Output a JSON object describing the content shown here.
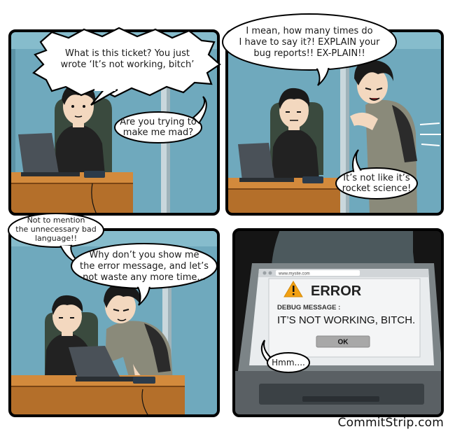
{
  "panel1": {
    "speech_top": [
      "What is this ticket? You just",
      "wrote ‘It’s not working, bitch’"
    ],
    "speech_bottom": [
      "Are you trying to",
      "make me mad?"
    ]
  },
  "panel2": {
    "speech_top": [
      "I mean, how many times do",
      "I have to say it?! EXPLAIN your",
      "bug reports!! EX-PLAIN!!"
    ],
    "speech_bottom": [
      "It’s not like it’s",
      "rocket science!"
    ]
  },
  "panel3": {
    "speech_top": [
      "Not to mention",
      "the unnecessary bad",
      "language!!"
    ],
    "speech_bottom": [
      "Why don’t you show me",
      "the error message, and let’s",
      "not waste any more time..."
    ]
  },
  "panel4": {
    "address_bar": "www.mysite.com",
    "error_title": "ERROR",
    "debug_label": "DEBUG MESSAGE :",
    "debug_message": "IT’S NOT WORKING, BITCH.",
    "ok_button": "OK",
    "speech": "Hmm...."
  },
  "credit": "CommitStrip.com",
  "colors": {
    "wall": "#6fa9bd",
    "desk": "#d38a3c",
    "shirt": "#222222",
    "vest": "#8a8a7a",
    "warning": "#f2a012",
    "ok_button": "#a8a8a8"
  }
}
